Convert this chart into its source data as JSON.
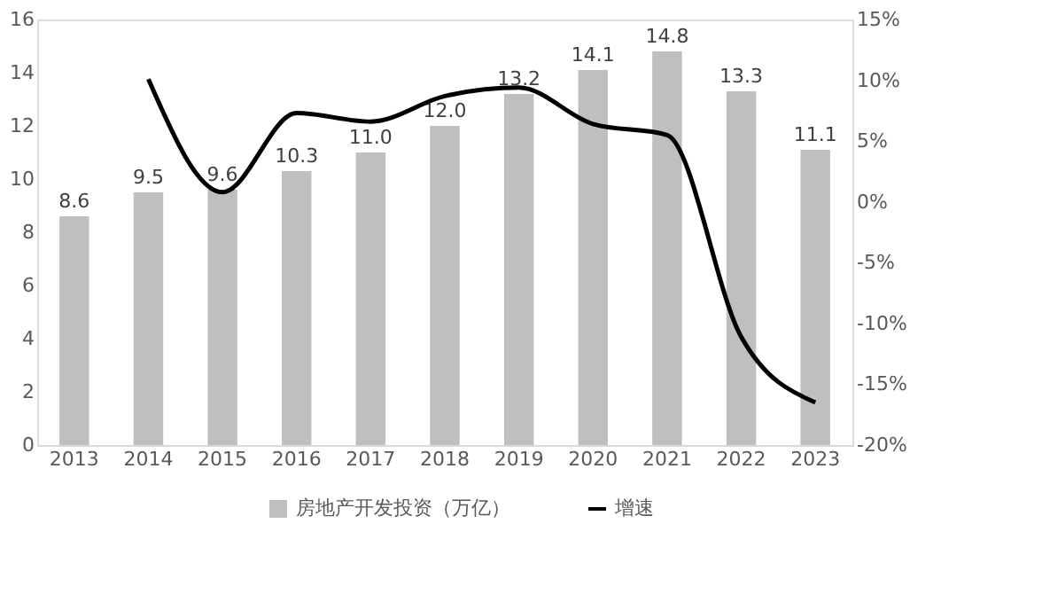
{
  "chart_data": {
    "type": "bar",
    "categories": [
      "2013",
      "2014",
      "2015",
      "2016",
      "2017",
      "2018",
      "2019",
      "2020",
      "2021",
      "2022",
      "2023"
    ],
    "series": [
      {
        "name": "房地产开发投资（万亿）",
        "color": "#bfbfbf",
        "values": [
          8.6,
          9.5,
          9.6,
          10.3,
          11.0,
          12.0,
          13.2,
          14.1,
          14.8,
          13.3,
          11.1
        ],
        "value_labels": [
          "8.6",
          "9.5",
          "9.6",
          "10.3",
          "11.0",
          "12.0",
          "13.2",
          "14.1",
          "14.8",
          "13.3",
          "11.1"
        ]
      },
      {
        "name": "增速",
        "type": "line",
        "axis": "y2",
        "color": "#000000",
        "values": [
          null,
          10.1,
          0.8,
          7.3,
          6.6,
          8.7,
          9.4,
          6.4,
          5.5,
          -11.1,
          -16.5
        ]
      }
    ],
    "ylim": [
      0,
      16
    ],
    "yticks": [
      0,
      2,
      4,
      6,
      8,
      10,
      12,
      14,
      16
    ],
    "y2lim": [
      -20,
      15
    ],
    "y2ticks": [
      {
        "value": -20,
        "label": "-20%"
      },
      {
        "value": -15,
        "label": "-15%"
      },
      {
        "value": -10,
        "label": "-10%"
      },
      {
        "value": -5,
        "label": "-5%"
      },
      {
        "value": 0,
        "label": "0%"
      },
      {
        "value": 5,
        "label": "5%"
      },
      {
        "value": 10,
        "label": "10%"
      },
      {
        "value": 15,
        "label": "15%"
      }
    ],
    "legend": "bottom",
    "grid": false
  }
}
